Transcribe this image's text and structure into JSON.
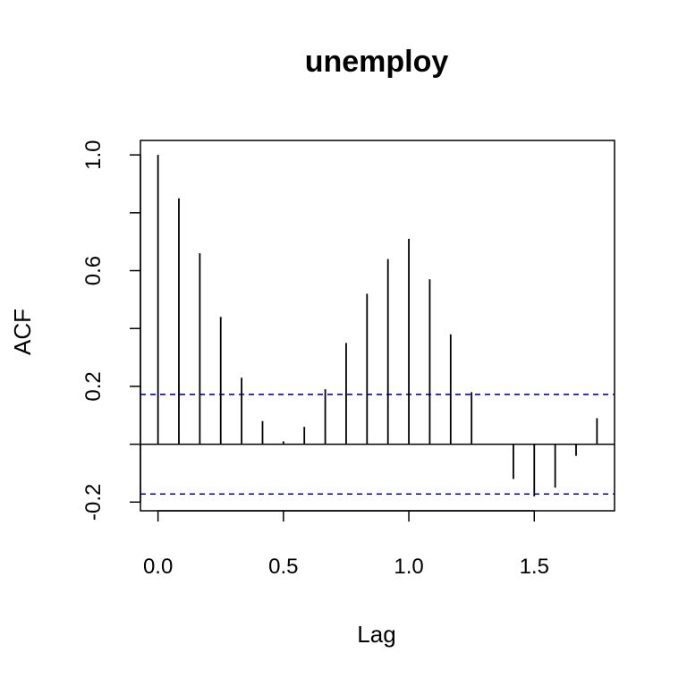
{
  "chart_data": {
    "type": "bar",
    "subtype": "acf",
    "title": "unemploy",
    "xlabel": "Lag",
    "ylabel": "ACF",
    "x": [
      0.0,
      0.0833,
      0.1667,
      0.25,
      0.3333,
      0.4167,
      0.5,
      0.5833,
      0.6667,
      0.75,
      0.8333,
      0.9167,
      1.0,
      1.0833,
      1.1667,
      1.25,
      1.3333,
      1.4167,
      1.5,
      1.5833,
      1.6667,
      1.75
    ],
    "values": [
      1.0,
      0.85,
      0.66,
      0.44,
      0.23,
      0.08,
      0.01,
      0.06,
      0.19,
      0.35,
      0.52,
      0.64,
      0.71,
      0.57,
      0.38,
      0.18,
      0.0,
      -0.12,
      -0.18,
      -0.15,
      -0.04,
      0.09
    ],
    "confidence_bound": 0.172,
    "xlim": [
      -0.07,
      1.82
    ],
    "ylim": [
      -0.23,
      1.05
    ],
    "xticks": [
      "0.0",
      "0.5",
      "1.0",
      "1.5"
    ],
    "xtick_values": [
      0.0,
      0.5,
      1.0,
      1.5
    ],
    "yticks": [
      "-0.2",
      "0.2",
      "0.6",
      "1.0"
    ],
    "ytick_values": [
      -0.2,
      0.2,
      0.6,
      1.0
    ],
    "yminor_ticks": [
      0.0,
      0.4,
      0.8
    ],
    "grid": false,
    "colors": {
      "bars": "#000000",
      "bounds": "#0000cc",
      "axis": "#000000"
    }
  }
}
